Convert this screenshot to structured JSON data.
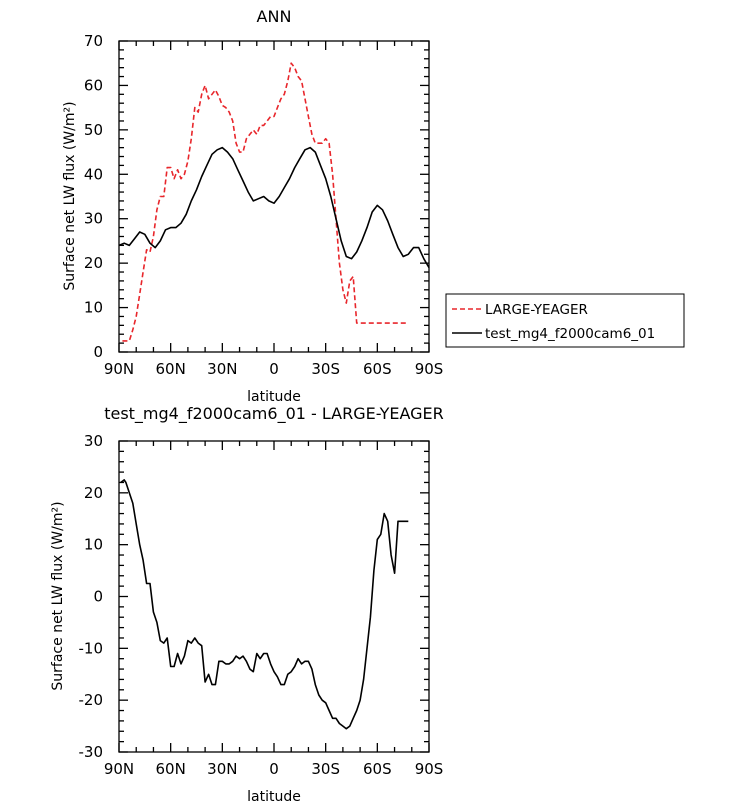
{
  "chart_data": [
    {
      "type": "line",
      "title": "ANN",
      "xlabel": "latitude",
      "ylabel": "Surface net LW flux (W/m²)",
      "xlim": [
        90,
        -90
      ],
      "ylim": [
        0,
        70
      ],
      "x_tick_labels": [
        "90N",
        "60N",
        "30N",
        "0",
        "30S",
        "60S",
        "90S"
      ],
      "y_tick_labels": [
        "0",
        "10",
        "20",
        "30",
        "40",
        "50",
        "60",
        "70"
      ],
      "legend": "right",
      "series": [
        {
          "name": "LARGE-YEAGER",
          "color": "#e8262b",
          "dash": "dashed",
          "x": [
            88,
            86,
            84,
            82,
            80,
            78,
            76,
            74,
            72,
            70,
            68,
            66,
            64,
            62,
            60,
            58,
            56,
            54,
            52,
            50,
            48,
            46,
            44,
            42,
            40,
            38,
            36,
            34,
            32,
            30,
            28,
            26,
            24,
            22,
            20,
            18,
            16,
            14,
            12,
            10,
            8,
            6,
            4,
            2,
            0,
            -2,
            -4,
            -6,
            -8,
            -10,
            -12,
            -14,
            -16,
            -18,
            -20,
            -22,
            -24,
            -26,
            -28,
            -30,
            -32,
            -34,
            -36,
            -38,
            -40,
            -42,
            -44,
            -46,
            -48,
            -50,
            -52,
            -54,
            -56,
            -58,
            -60,
            -62,
            -64,
            -66,
            -68,
            -70,
            -72,
            -74,
            -76,
            -78
          ],
          "y": [
            2.5,
            2.5,
            2.5,
            5,
            8,
            13,
            18,
            23,
            22.5,
            26,
            32,
            35,
            35,
            41.5,
            41.5,
            39,
            41,
            39,
            40,
            43,
            48,
            55,
            54,
            58,
            60,
            57,
            58,
            59,
            57.5,
            55.5,
            55,
            54,
            52,
            47,
            45,
            45,
            48,
            49,
            50,
            49,
            51,
            51,
            52,
            53,
            53,
            55,
            57,
            58,
            61,
            65,
            64,
            62,
            61,
            57,
            53,
            49,
            47,
            47,
            47,
            48,
            47,
            40,
            30,
            20,
            14,
            11,
            16,
            17,
            6.5,
            6.5,
            6.5,
            6.5,
            6.5,
            6.5,
            6.5,
            6.5,
            6.5,
            6.5,
            6.5,
            6.5,
            6.5,
            6.5,
            6.5,
            6.5
          ]
        },
        {
          "name": "test_mg4_f2000cam6_01",
          "color": "#000000",
          "dash": "solid",
          "x": [
            90,
            87,
            84,
            81,
            78,
            75,
            72,
            69,
            66,
            63,
            60,
            57,
            54,
            51,
            48,
            45,
            42,
            39,
            36,
            33,
            30,
            27,
            24,
            21,
            18,
            15,
            12,
            9,
            6,
            3,
            0,
            -3,
            -6,
            -9,
            -12,
            -15,
            -18,
            -21,
            -24,
            -27,
            -30,
            -33,
            -36,
            -39,
            -42,
            -45,
            -48,
            -51,
            -54,
            -57,
            -60,
            -63,
            -66,
            -69,
            -72,
            -75,
            -78,
            -81,
            -84,
            -87,
            -90
          ],
          "y": [
            24,
            24.5,
            24,
            25.5,
            27,
            26.5,
            24.5,
            23.5,
            25,
            27.5,
            28,
            28,
            29,
            31,
            34,
            36.5,
            39.5,
            42,
            44.5,
            45.5,
            46,
            45,
            43.5,
            41,
            38.5,
            36,
            34,
            34.5,
            35,
            34,
            33.5,
            35,
            37,
            39,
            41.5,
            43.5,
            45.5,
            46,
            45,
            42,
            39,
            35,
            30,
            25,
            21.5,
            21,
            22.5,
            25,
            28,
            31.5,
            33,
            32,
            29.5,
            26.5,
            23.5,
            21.5,
            22,
            23.5,
            23.5,
            21,
            19
          ]
        }
      ]
    },
    {
      "type": "line",
      "title": "test_mg4_f2000cam6_01 - LARGE-YEAGER",
      "xlabel": "latitude",
      "ylabel": "Surface net LW flux (W/m²)",
      "xlim": [
        90,
        -90
      ],
      "ylim": [
        -30,
        30
      ],
      "x_tick_labels": [
        "90N",
        "60N",
        "30N",
        "0",
        "30S",
        "60S",
        "90S"
      ],
      "y_tick_labels": [
        "-30",
        "-20",
        "-10",
        "0",
        "10",
        "20",
        "30"
      ],
      "series": [
        {
          "color": "#000000",
          "dash": "solid",
          "x": [
            89,
            87,
            86,
            84,
            82,
            80,
            78,
            76,
            74,
            72,
            70,
            68,
            66,
            64,
            62,
            60,
            58,
            56,
            54,
            52,
            50,
            48,
            46,
            44,
            42,
            40,
            38,
            36,
            34,
            32,
            30,
            28,
            26,
            24,
            22,
            20,
            18,
            16,
            14,
            12,
            10,
            8,
            6,
            4,
            2,
            0,
            -2,
            -4,
            -6,
            -8,
            -10,
            -12,
            -14,
            -16,
            -18,
            -20,
            -22,
            -24,
            -26,
            -28,
            -30,
            -32,
            -34,
            -36,
            -38,
            -40,
            -42,
            -44,
            -46,
            -48,
            -50,
            -52,
            -54,
            -56,
            -58,
            -60,
            -62,
            -64,
            -66,
            -68,
            -70,
            -72,
            -74,
            -76,
            -78
          ],
          "y": [
            22,
            22.5,
            22,
            20,
            18,
            14,
            10,
            7,
            2.5,
            2.5,
            -3,
            -5,
            -8.5,
            -9,
            -8,
            -13.5,
            -13.5,
            -11,
            -13,
            -11.5,
            -8.5,
            -9,
            -8,
            -9,
            -9.5,
            -16.5,
            -15,
            -17,
            -17,
            -12.5,
            -12.5,
            -13,
            -13,
            -12.5,
            -11.5,
            -12,
            -11.5,
            -12.5,
            -14,
            -14.5,
            -11,
            -12,
            -11,
            -11,
            -13,
            -14.5,
            -15.5,
            -17,
            -17,
            -15,
            -14.5,
            -13.5,
            -12,
            -13,
            -12.5,
            -12.5,
            -14,
            -17,
            -19,
            -20,
            -20.5,
            -22,
            -23.5,
            -23.5,
            -24.5,
            -25,
            -25.5,
            -25,
            -23.5,
            -22,
            -20,
            -16,
            -10,
            -4,
            5,
            11,
            12,
            16,
            14.5,
            8,
            4.5,
            14.5,
            14.5,
            14.5,
            14.5
          ]
        }
      ]
    }
  ]
}
